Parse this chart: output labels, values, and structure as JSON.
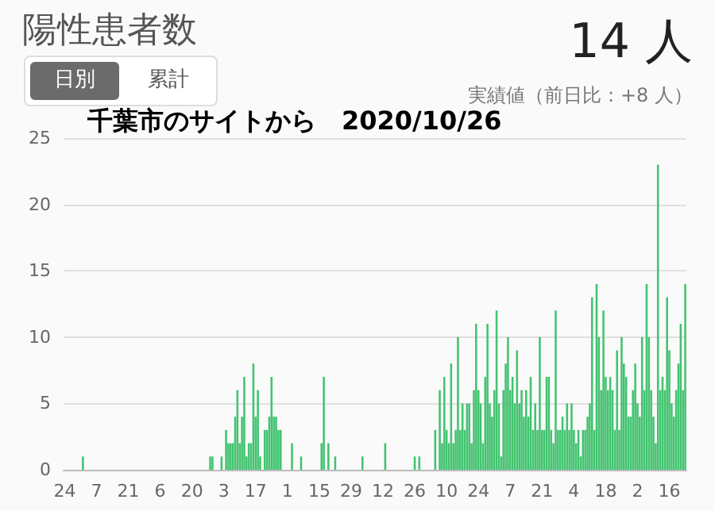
{
  "chart_data": {
    "type": "bar",
    "title": "陽性患者数",
    "subtitle": "実績値（前日比：+8 人）",
    "annotations": [
      "14 人",
      "日別",
      "累計",
      "千葉市のサイトから　2020/10/26"
    ],
    "color": "#43c370",
    "ylim": [
      0,
      25
    ],
    "yticks": [
      0,
      5,
      10,
      15,
      20,
      25
    ],
    "grid": "y",
    "categories": [
      "24",
      null,
      null,
      null,
      null,
      null,
      null,
      null,
      null,
      null,
      null,
      null,
      null,
      null,
      "7",
      null,
      null,
      null,
      null,
      null,
      null,
      null,
      null,
      null,
      null,
      null,
      null,
      null,
      "21",
      null,
      null,
      null,
      null,
      null,
      null,
      null,
      null,
      null,
      null,
      null,
      null,
      null,
      "6",
      null,
      null,
      null,
      null,
      null,
      null,
      null,
      null,
      null,
      null,
      null,
      null,
      null,
      "20",
      null,
      null,
      null,
      null,
      null,
      null,
      null,
      null,
      null,
      null,
      null,
      null,
      null,
      "3",
      null,
      null,
      null,
      null,
      null,
      null,
      null,
      null,
      null,
      null,
      null,
      null,
      null,
      "17",
      null,
      null,
      null,
      null,
      null,
      null,
      null,
      null,
      null,
      null,
      null,
      null,
      null,
      "1",
      null,
      null,
      null,
      null,
      null,
      null,
      null,
      null,
      null,
      null,
      null,
      null,
      null,
      "15",
      null,
      null,
      null,
      null,
      null,
      null,
      null,
      null,
      null,
      null,
      null,
      null,
      null,
      "29",
      null,
      null,
      null,
      null,
      null,
      null,
      null,
      null,
      null,
      null,
      null,
      null,
      null,
      "12",
      null,
      null,
      null,
      null,
      null,
      null,
      null,
      null,
      null,
      null,
      null,
      null,
      null,
      "26",
      null,
      null,
      null,
      null,
      null,
      null,
      null,
      null,
      null,
      null,
      null,
      null,
      null,
      "10",
      null,
      null,
      null,
      null,
      null,
      null,
      null,
      null,
      null,
      null,
      null,
      null,
      null,
      "24",
      null,
      null,
      null,
      null,
      null,
      null,
      null,
      null,
      null,
      null,
      null,
      null,
      null,
      "7",
      null,
      null,
      null,
      null,
      null,
      null,
      null,
      null,
      null,
      null,
      null,
      null,
      null,
      "21",
      null,
      null,
      null,
      null,
      null,
      null,
      null,
      null,
      null,
      null,
      null,
      null,
      null,
      "4",
      null,
      null,
      null,
      null,
      null,
      null,
      null,
      null,
      null,
      null,
      null,
      null,
      null,
      "18",
      null,
      null,
      null,
      null,
      null,
      null,
      null,
      null,
      null,
      null,
      null,
      null,
      null,
      "2",
      null,
      null,
      null,
      null,
      null,
      null,
      null,
      null,
      null,
      null,
      null,
      null,
      null,
      "16",
      null,
      null,
      null,
      null,
      null,
      null,
      null
    ],
    "values": [
      0,
      0,
      0,
      0,
      0,
      0,
      0,
      0,
      1,
      0,
      0,
      0,
      0,
      0,
      0,
      0,
      0,
      0,
      0,
      0,
      0,
      0,
      0,
      0,
      0,
      0,
      0,
      0,
      0,
      0,
      0,
      0,
      0,
      0,
      0,
      0,
      0,
      0,
      0,
      0,
      0,
      0,
      0,
      0,
      0,
      0,
      0,
      0,
      0,
      0,
      0,
      0,
      0,
      0,
      0,
      0,
      0,
      0,
      0,
      0,
      0,
      0,
      0,
      0,
      1,
      1,
      0,
      0,
      0,
      1,
      0,
      3,
      2,
      2,
      2,
      4,
      6,
      2,
      4,
      7,
      1,
      2,
      2,
      8,
      4,
      6,
      1,
      0,
      3,
      3,
      4,
      7,
      4,
      4,
      3,
      3,
      0,
      0,
      0,
      0,
      2,
      0,
      0,
      0,
      1,
      0,
      0,
      0,
      0,
      0,
      0,
      0,
      0,
      2,
      7,
      0,
      2,
      0,
      0,
      1,
      0,
      0,
      0,
      0,
      0,
      0,
      0,
      0,
      0,
      0,
      0,
      1,
      0,
      0,
      0,
      0,
      0,
      0,
      0,
      0,
      0,
      2,
      0,
      0,
      0,
      0,
      0,
      0,
      0,
      0,
      0,
      0,
      0,
      0,
      1,
      0,
      1,
      0,
      0,
      0,
      0,
      0,
      0,
      3,
      0,
      6,
      2,
      7,
      3,
      2,
      8,
      2,
      3,
      10,
      3,
      5,
      3,
      5,
      5,
      2,
      6,
      11,
      6,
      5,
      2,
      7,
      11,
      5,
      4,
      6,
      12,
      5,
      1,
      6,
      8,
      10,
      6,
      7,
      5,
      9,
      5,
      6,
      4,
      6,
      4,
      7,
      3,
      5,
      3,
      10,
      3,
      3,
      7,
      7,
      3,
      2,
      12,
      3,
      3,
      4,
      3,
      5,
      3,
      5,
      3,
      2,
      3,
      1,
      3,
      3,
      4,
      5,
      13,
      3,
      14,
      10,
      6,
      12,
      7,
      6,
      7,
      6,
      3,
      9,
      3,
      10,
      8,
      7,
      4,
      4,
      6,
      8,
      5,
      4,
      10,
      6,
      14,
      10,
      6,
      4,
      2,
      23,
      6,
      7,
      6,
      13,
      9,
      5,
      4,
      6,
      8,
      11,
      6,
      14
    ]
  }
}
